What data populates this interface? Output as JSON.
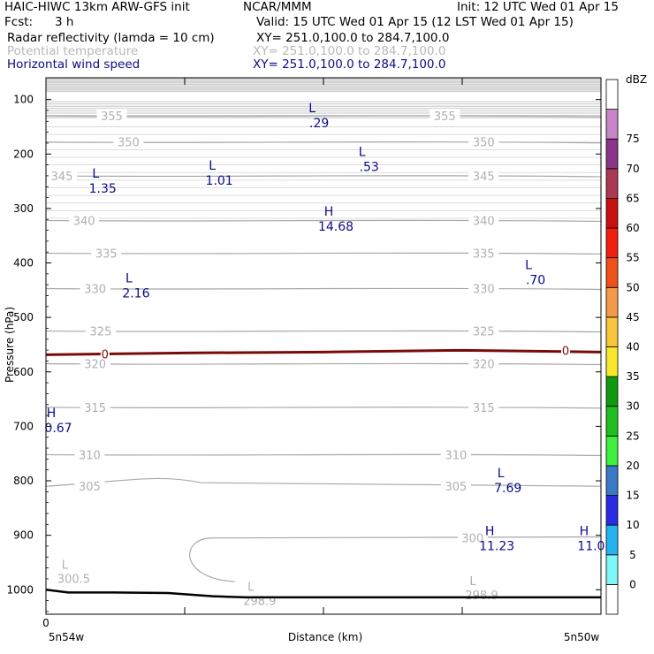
{
  "header": {
    "model": "HAIC-HIWC 13km ARW-GFS init",
    "center": "NCAR/MMM",
    "init": "Init: 12 UTC Wed 01 Apr 15",
    "fcst_label": "Fcst:",
    "fcst_value": "3 h",
    "valid": "Valid: 15 UTC Wed 01 Apr 15 (12 LST Wed 01 Apr 15)",
    "fields": [
      {
        "name": "Radar reflectivity (lamda = 10 cm)",
        "xy": "XY= 251.0,100.0 to 284.7,100.0",
        "color": "#000000"
      },
      {
        "name": "Potential temperature",
        "xy": "XY= 251.0,100.0 to 284.7,100.0",
        "color": "#b8b8b8"
      },
      {
        "name": "Horizontal wind speed",
        "xy": "XY= 251.0,100.0 to 284.7,100.0",
        "color": "#0a0a8c"
      }
    ]
  },
  "chart_data": {
    "type": "cross-section contour",
    "ylabel": "Pressure (hPa)",
    "xlabel": "Distance (km)",
    "ylim": [
      1045,
      60
    ],
    "y_ticks": [
      100,
      200,
      300,
      400,
      500,
      600,
      700,
      800,
      900,
      1000
    ],
    "x_origin_label": "0",
    "x_end_labels": [
      "5n54w",
      "5n50w"
    ],
    "x_ticks_minor": 4,
    "theta_contours": [
      {
        "value": 355,
        "pressure": 130,
        "labels": [
          {
            "text": "355",
            "xf": 0.09
          },
          {
            "text": "355",
            "xf": 0.69
          }
        ]
      },
      {
        "value": 350,
        "pressure": 178,
        "labels": [
          {
            "text": "350",
            "xf": 0.12
          },
          {
            "text": "350",
            "xf": 0.76
          }
        ]
      },
      {
        "value": 345,
        "pressure": 240,
        "labels": [
          {
            "text": "345",
            "xf": 0.0
          },
          {
            "text": "345",
            "xf": 0.76
          }
        ]
      },
      {
        "value": 340,
        "pressure": 322,
        "labels": [
          {
            "text": "340",
            "xf": 0.04
          },
          {
            "text": "340",
            "xf": 0.76
          }
        ]
      },
      {
        "value": 335,
        "pressure": 382,
        "labels": [
          {
            "text": "335",
            "xf": 0.08
          },
          {
            "text": "335",
            "xf": 0.76
          }
        ]
      },
      {
        "value": 330,
        "pressure": 447,
        "labels": [
          {
            "text": "330",
            "xf": 0.06
          },
          {
            "text": "330",
            "xf": 0.76
          }
        ]
      },
      {
        "value": 325,
        "pressure": 525,
        "labels": [
          {
            "text": "325",
            "xf": 0.07
          },
          {
            "text": "325",
            "xf": 0.76
          }
        ]
      },
      {
        "value": 320,
        "pressure": 585,
        "labels": [
          {
            "text": "320",
            "xf": 0.06
          },
          {
            "text": "320",
            "xf": 0.76
          }
        ]
      },
      {
        "value": 315,
        "pressure": 665,
        "labels": [
          {
            "text": "315",
            "xf": 0.06
          },
          {
            "text": "315",
            "xf": 0.76
          }
        ]
      },
      {
        "value": 310,
        "pressure": 752,
        "labels": [
          {
            "text": "310",
            "xf": 0.05
          },
          {
            "text": "310",
            "xf": 0.71
          }
        ]
      },
      {
        "value": 305,
        "pressure": 810,
        "labels": [
          {
            "text": "305",
            "xf": 0.05
          },
          {
            "text": "305",
            "xf": 0.71
          }
        ]
      },
      {
        "value": 300,
        "pressure": 905,
        "labels": [
          {
            "text": "300",
            "xf": 0.74
          }
        ]
      }
    ],
    "theta_extrema": [
      {
        "kind": "L",
        "value": "300.5",
        "pressure": 965,
        "xf": 0.015
      },
      {
        "kind": "L",
        "value": "298.9",
        "pressure": 1005,
        "xf": 0.35
      },
      {
        "kind": "L",
        "value": "298.9",
        "pressure": 995,
        "xf": 0.75
      }
    ],
    "reflectivity_zero_contour": {
      "value": 0,
      "color": "#7a0a0a",
      "pressure": 562
    },
    "wind_extrema": [
      {
        "kind": "L",
        "value": ".29",
        "pressure": 130,
        "xf": 0.47
      },
      {
        "kind": "L",
        "value": "1.35",
        "pressure": 250,
        "xf": 0.08
      },
      {
        "kind": "L",
        "value": "1.01",
        "pressure": 235,
        "xf": 0.29
      },
      {
        "kind": "L",
        "value": ".53",
        "pressure": 210,
        "xf": 0.56
      },
      {
        "kind": "H",
        "value": "14.68",
        "pressure": 320,
        "xf": 0.5
      },
      {
        "kind": "L",
        "value": "2.16",
        "pressure": 442,
        "xf": 0.14
      },
      {
        "kind": "L",
        "value": ".70",
        "pressure": 418,
        "xf": 0.86
      },
      {
        "kind": "H",
        "value": "0.67",
        "pressure": 690,
        "xf": 0.0
      },
      {
        "kind": "L",
        "value": "7.69",
        "pressure": 800,
        "xf": 0.81
      },
      {
        "kind": "H",
        "value": "11.23",
        "pressure": 906,
        "xf": 0.79
      },
      {
        "kind": "H",
        "value": "11.0",
        "pressure": 906,
        "xf": 0.96
      }
    ],
    "terrain": [
      {
        "xf": 0.0,
        "pressure": 1000
      },
      {
        "xf": 0.04,
        "pressure": 1005
      },
      {
        "xf": 0.12,
        "pressure": 1005
      },
      {
        "xf": 0.22,
        "pressure": 1006
      },
      {
        "xf": 0.3,
        "pressure": 1012
      },
      {
        "xf": 0.36,
        "pressure": 1014
      },
      {
        "xf": 1.0,
        "pressure": 1014
      }
    ],
    "colorbar": {
      "unit": "dBZ",
      "levels": [
        0,
        5,
        10,
        15,
        20,
        25,
        30,
        35,
        40,
        45,
        50,
        55,
        60,
        65,
        70,
        75
      ],
      "colors": [
        "#ffffff",
        "#7ef7f7",
        "#23b4ef",
        "#2a2ae2",
        "#3a7ac4",
        "#3df03d",
        "#1fbf1f",
        "#0f9a0f",
        "#f7e82a",
        "#f7c63a",
        "#f39a4a",
        "#f0501a",
        "#f01f10",
        "#c81010",
        "#a83a54",
        "#8a348a",
        "#c885c8",
        "#ffffff"
      ]
    }
  }
}
